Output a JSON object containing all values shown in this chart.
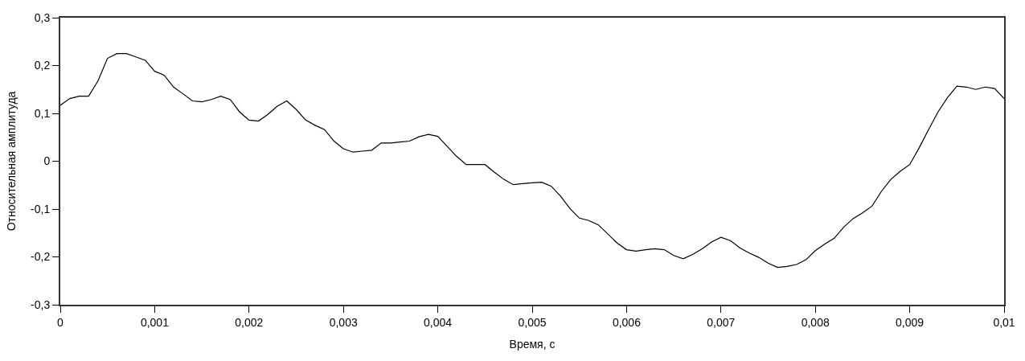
{
  "chart_data": {
    "type": "line",
    "xlabel": "Время, с",
    "ylabel": "Относительная амплитуда",
    "x": [
      0,
      0.0001,
      0.0002,
      0.0003,
      0.0004,
      0.0005,
      0.0006,
      0.0007,
      0.0008,
      0.0009,
      0.001,
      0.0011,
      0.0012,
      0.0013,
      0.0014,
      0.0015,
      0.0016,
      0.0017,
      0.0018,
      0.0019,
      0.002,
      0.0021,
      0.0022,
      0.0023,
      0.0024,
      0.0025,
      0.0026,
      0.0027,
      0.0028,
      0.0029,
      0.003,
      0.0031,
      0.0032,
      0.0033,
      0.0034,
      0.0035,
      0.0036,
      0.0037,
      0.0038,
      0.0039,
      0.004,
      0.0041,
      0.0042,
      0.0043,
      0.0044,
      0.0045,
      0.0046,
      0.0047,
      0.0048,
      0.0049,
      0.005,
      0.0051,
      0.0052,
      0.0053,
      0.0054,
      0.0055,
      0.0056,
      0.0057,
      0.0058,
      0.0059,
      0.006,
      0.0061,
      0.0062,
      0.0063,
      0.0064,
      0.0065,
      0.0066,
      0.0067,
      0.0068,
      0.0069,
      0.007,
      0.0071,
      0.0072,
      0.0073,
      0.0074,
      0.0075,
      0.0076,
      0.0077,
      0.0078,
      0.0079,
      0.008,
      0.0081,
      0.0082,
      0.0083,
      0.0084,
      0.0085,
      0.0086,
      0.0087,
      0.0088,
      0.0089,
      0.009,
      0.0091,
      0.0092,
      0.0093,
      0.0094,
      0.0095,
      0.0096,
      0.0097,
      0.0098,
      0.0099,
      0.01
    ],
    "series": [
      {
        "color": "#000000",
        "values": [
          0.117,
          0.131,
          0.136,
          0.136,
          0.168,
          0.215,
          0.225,
          0.225,
          0.218,
          0.211,
          0.188,
          0.18,
          0.155,
          0.141,
          0.126,
          0.124,
          0.129,
          0.136,
          0.129,
          0.103,
          0.086,
          0.084,
          0.098,
          0.115,
          0.126,
          0.108,
          0.086,
          0.075,
          0.066,
          0.042,
          0.026,
          0.019,
          0.021,
          0.023,
          0.038,
          0.038,
          0.04,
          0.042,
          0.051,
          0.056,
          0.052,
          0.031,
          0.01,
          -0.007,
          -0.007,
          -0.007,
          -0.023,
          -0.038,
          -0.049,
          -0.047,
          -0.045,
          -0.044,
          -0.052,
          -0.073,
          -0.099,
          -0.119,
          -0.124,
          -0.133,
          -0.152,
          -0.171,
          -0.185,
          -0.188,
          -0.185,
          -0.183,
          -0.185,
          -0.197,
          -0.204,
          -0.195,
          -0.183,
          -0.169,
          -0.159,
          -0.166,
          -0.181,
          -0.192,
          -0.201,
          -0.213,
          -0.222,
          -0.22,
          -0.216,
          -0.206,
          -0.187,
          -0.173,
          -0.161,
          -0.138,
          -0.12,
          -0.108,
          -0.094,
          -0.063,
          -0.038,
          -0.021,
          -0.007,
          0.028,
          0.066,
          0.103,
          0.133,
          0.157,
          0.155,
          0.15,
          0.155,
          0.152,
          0.131
        ]
      }
    ],
    "xlim": [
      0,
      0.01
    ],
    "ylim": [
      -0.3,
      0.3
    ],
    "xticks": [
      0,
      {
        "value": 0.001,
        "label": "0,001"
      },
      {
        "value": 0.002,
        "label": "0,002"
      },
      {
        "value": 0.003,
        "label": "0,003"
      },
      {
        "value": 0.004,
        "label": "0,004"
      },
      {
        "value": 0.005,
        "label": "0,005"
      },
      {
        "value": 0.006,
        "label": "0,006"
      },
      {
        "value": 0.007,
        "label": "0,007"
      },
      {
        "value": 0.008,
        "label": "0,008"
      },
      {
        "value": 0.009,
        "label": "0,009"
      },
      {
        "value": 0.01,
        "label": "0,01"
      }
    ],
    "yticks": [
      {
        "value": -0.3,
        "label": "-0,3"
      },
      {
        "value": -0.2,
        "label": "-0,2"
      },
      {
        "value": -0.1,
        "label": "-0,1"
      },
      0,
      {
        "value": 0.1,
        "label": "0,1"
      },
      {
        "value": 0.2,
        "label": "0,2"
      },
      {
        "value": 0.3,
        "label": "0,3"
      }
    ],
    "marker": "none",
    "line_style": "solid"
  }
}
